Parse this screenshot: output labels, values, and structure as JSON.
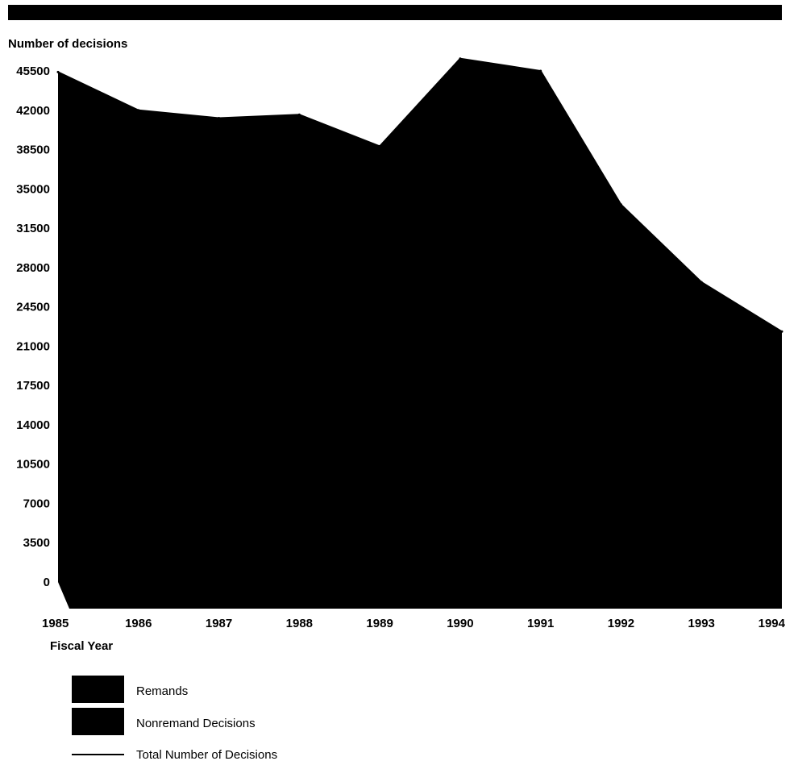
{
  "chart_data": {
    "type": "area",
    "ylabel": "Number of decisions",
    "xlabel": "Fiscal Year",
    "ylim": [
      -2500,
      46800
    ],
    "y_ticks": [
      0,
      3500,
      7000,
      10500,
      14000,
      17500,
      21000,
      24500,
      28000,
      31500,
      35000,
      38500,
      42000,
      45500
    ],
    "x": [
      1985,
      1986,
      1987,
      1988,
      1989,
      1990,
      1991,
      1992,
      1993,
      1994
    ],
    "series": [
      {
        "name": "Remands",
        "values": [
          null,
          null,
          null,
          null,
          null,
          null,
          null,
          null,
          null,
          null
        ]
      },
      {
        "name": "Nonremand Decisions",
        "values": [
          null,
          null,
          null,
          null,
          null,
          null,
          null,
          null,
          null,
          null
        ]
      },
      {
        "name": "Total Number of Decisions",
        "values": [
          45400,
          42000,
          41300,
          41600,
          38800,
          46600,
          45500,
          33600,
          26700,
          22300
        ]
      }
    ],
    "grid": false,
    "legend_position": "bottom-left",
    "colors": {
      "remands": "#000000",
      "nonremand": "#000000",
      "total_line": "#000000",
      "banner": "#000000"
    }
  }
}
